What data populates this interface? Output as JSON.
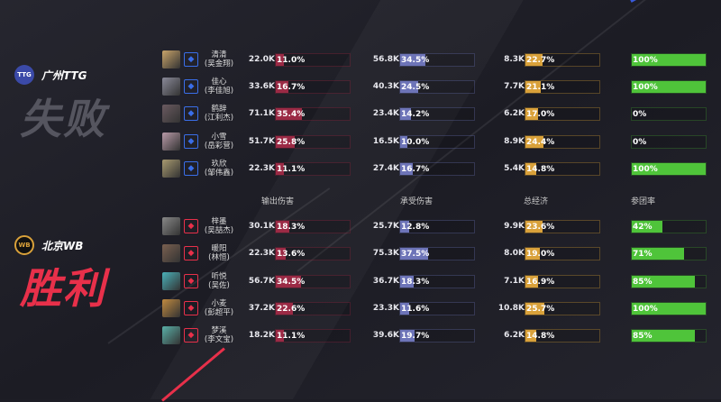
{
  "colors": {
    "damage": "#9b2a45",
    "taken": "#6d74b8",
    "economy": "#d9a13a",
    "participation": "#4fc43a",
    "win": "#e8304a",
    "lose": "#5a5a64"
  },
  "headers": {
    "damage": "输出伤害",
    "taken": "承受伤害",
    "economy": "总经济",
    "participation": "参团率"
  },
  "teams": [
    {
      "name": "广州TTG",
      "logo": "TTG",
      "result": "失败",
      "side": "blue",
      "players": [
        {
          "hero": "清清",
          "player": "(吴金翔)",
          "damage": "22.0K",
          "damage_pct": 11.0,
          "taken": "56.8K",
          "taken_pct": 34.5,
          "gold": "8.3K",
          "gold_pct": 22.7,
          "participation": 100
        },
        {
          "hero": "佳心",
          "player": "(李佳旭)",
          "damage": "33.6K",
          "damage_pct": 16.7,
          "taken": "40.3K",
          "taken_pct": 24.5,
          "gold": "7.7K",
          "gold_pct": 21.1,
          "participation": 100
        },
        {
          "hero": "鹤辞",
          "player": "(江利杰)",
          "damage": "71.1K",
          "damage_pct": 35.4,
          "taken": "23.4K",
          "taken_pct": 14.2,
          "gold": "6.2K",
          "gold_pct": 17.0,
          "participation": 0
        },
        {
          "hero": "小雪",
          "player": "(岳彩营)",
          "damage": "51.7K",
          "damage_pct": 25.8,
          "taken": "16.5K",
          "taken_pct": 10.0,
          "gold": "8.9K",
          "gold_pct": 24.4,
          "participation": 0
        },
        {
          "hero": "玖欣",
          "player": "(邹伟鑫)",
          "damage": "22.3K",
          "damage_pct": 11.1,
          "taken": "27.4K",
          "taken_pct": 16.7,
          "gold": "5.4K",
          "gold_pct": 14.8,
          "participation": 100
        }
      ]
    },
    {
      "name": "北京WB",
      "logo": "WB",
      "result": "胜利",
      "side": "red",
      "players": [
        {
          "hero": "梓墨",
          "player": "(吴喆杰)",
          "damage": "30.1K",
          "damage_pct": 18.3,
          "taken": "25.7K",
          "taken_pct": 12.8,
          "gold": "9.9K",
          "gold_pct": 23.6,
          "participation": 42
        },
        {
          "hero": "暖阳",
          "player": "(林恒)",
          "damage": "22.3K",
          "damage_pct": 13.6,
          "taken": "75.3K",
          "taken_pct": 37.5,
          "gold": "8.0K",
          "gold_pct": 19.0,
          "participation": 71
        },
        {
          "hero": "听悦",
          "player": "(吴佐)",
          "damage": "56.7K",
          "damage_pct": 34.5,
          "taken": "36.7K",
          "taken_pct": 18.3,
          "gold": "7.1K",
          "gold_pct": 16.9,
          "participation": 85
        },
        {
          "hero": "小麦",
          "player": "(彭超平)",
          "damage": "37.2K",
          "damage_pct": 22.6,
          "taken": "23.3K",
          "taken_pct": 11.6,
          "gold": "10.8K",
          "gold_pct": 25.7,
          "participation": 100
        },
        {
          "hero": "梦溪",
          "player": "(李文宝)",
          "damage": "18.2K",
          "damage_pct": 11.1,
          "taken": "39.6K",
          "taken_pct": 19.7,
          "gold": "6.2K",
          "gold_pct": 14.8,
          "participation": 85
        }
      ]
    }
  ]
}
